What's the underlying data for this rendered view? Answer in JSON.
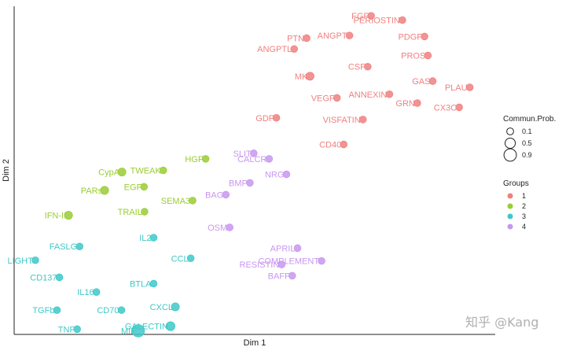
{
  "chart_data": {
    "type": "scatter",
    "xlabel": "Dim 1",
    "ylabel": "Dim 2",
    "xlim": [
      0,
      100
    ],
    "ylim": [
      0,
      100
    ],
    "grid": false,
    "groups": [
      {
        "name": "1",
        "color": "#F08080"
      },
      {
        "name": "2",
        "color": "#9ACD32"
      },
      {
        "name": "3",
        "color": "#40C8C8"
      },
      {
        "name": "4",
        "color": "#C896F0"
      }
    ],
    "size_legend": {
      "title": "Commun.Prob.",
      "values": [
        0.1,
        0.5,
        0.9
      ]
    },
    "group_legend_title": "Groups",
    "points": [
      {
        "label": "FGF",
        "x": 74.2,
        "y": 97.1,
        "group": "1",
        "size": 0.1
      },
      {
        "label": "PERIOSTIN",
        "x": 80.7,
        "y": 95.8,
        "group": "1",
        "size": 0.1
      },
      {
        "label": "PTN",
        "x": 60.8,
        "y": 90.3,
        "group": "1",
        "size": 0.1
      },
      {
        "label": "ANGPT",
        "x": 69.7,
        "y": 91.1,
        "group": "1",
        "size": 0.1
      },
      {
        "label": "PDGF",
        "x": 85.3,
        "y": 90.8,
        "group": "1",
        "size": 0.1
      },
      {
        "label": "ANGPTL",
        "x": 58.2,
        "y": 87.0,
        "group": "1",
        "size": 0.1
      },
      {
        "label": "PROS",
        "x": 86.0,
        "y": 85.0,
        "group": "1",
        "size": 0.1
      },
      {
        "label": "CSF",
        "x": 73.5,
        "y": 81.6,
        "group": "1",
        "size": 0.1
      },
      {
        "label": "MK",
        "x": 61.5,
        "y": 78.7,
        "group": "1",
        "size": 0.2
      },
      {
        "label": "PLAU",
        "x": 94.7,
        "y": 75.3,
        "group": "1",
        "size": 0.1
      },
      {
        "label": "ANNEXIN",
        "x": 78.0,
        "y": 73.2,
        "group": "1",
        "size": 0.1
      },
      {
        "label": "GAS",
        "x": 87.0,
        "y": 77.2,
        "group": "1",
        "size": 0.1
      },
      {
        "label": "VEGF",
        "x": 67.1,
        "y": 72.1,
        "group": "1",
        "size": 0.1
      },
      {
        "label": "CX3C",
        "x": 92.5,
        "y": 69.2,
        "group": "1",
        "size": 0.1
      },
      {
        "label": "GRN",
        "x": 83.8,
        "y": 70.5,
        "group": "1",
        "size": 0.1
      },
      {
        "label": "GDF",
        "x": 54.5,
        "y": 66.0,
        "group": "1",
        "size": 0.1
      },
      {
        "label": "VISFATIN",
        "x": 72.5,
        "y": 65.5,
        "group": "1",
        "size": 0.1
      },
      {
        "label": "CD40",
        "x": 68.5,
        "y": 57.9,
        "group": "1",
        "size": 0.1
      },
      {
        "label": "HGF",
        "x": 39.8,
        "y": 53.5,
        "group": "2",
        "size": 0.1
      },
      {
        "label": "CypA",
        "x": 22.4,
        "y": 49.5,
        "group": "2",
        "size": 0.2
      },
      {
        "label": "TWEAK",
        "x": 31.0,
        "y": 50.0,
        "group": "2",
        "size": 0.1
      },
      {
        "label": "EGF",
        "x": 27.0,
        "y": 45.0,
        "group": "2",
        "size": 0.1
      },
      {
        "label": "PARs",
        "x": 18.8,
        "y": 43.9,
        "group": "2",
        "size": 0.2
      },
      {
        "label": "SEMA3",
        "x": 37.1,
        "y": 40.8,
        "group": "2",
        "size": 0.1
      },
      {
        "label": "IFN-II",
        "x": 11.3,
        "y": 36.3,
        "group": "2",
        "size": 0.2
      },
      {
        "label": "TRAIL",
        "x": 27.1,
        "y": 37.4,
        "group": "2",
        "size": 0.1
      },
      {
        "label": "SLIT",
        "x": 49.8,
        "y": 55.2,
        "group": "4",
        "size": 0.1
      },
      {
        "label": "CALCR",
        "x": 53.0,
        "y": 53.5,
        "group": "4",
        "size": 0.1
      },
      {
        "label": "BMP",
        "x": 49.0,
        "y": 46.2,
        "group": "4",
        "size": 0.1
      },
      {
        "label": "NRG",
        "x": 56.6,
        "y": 48.8,
        "group": "4",
        "size": 0.1
      },
      {
        "label": "BAG",
        "x": 44.0,
        "y": 42.6,
        "group": "4",
        "size": 0.1
      },
      {
        "label": "OSM",
        "x": 44.8,
        "y": 32.6,
        "group": "4",
        "size": 0.1
      },
      {
        "label": "APRIL",
        "x": 58.9,
        "y": 26.3,
        "group": "4",
        "size": 0.1
      },
      {
        "label": "COMPLEMENT",
        "x": 63.9,
        "y": 22.4,
        "group": "4",
        "size": 0.1
      },
      {
        "label": "RESISTIN",
        "x": 55.6,
        "y": 21.3,
        "group": "4",
        "size": 0.1
      },
      {
        "label": "BAFF",
        "x": 57.8,
        "y": 17.9,
        "group": "4",
        "size": 0.1
      },
      {
        "label": "IL2",
        "x": 29.0,
        "y": 29.5,
        "group": "3",
        "size": 0.1
      },
      {
        "label": "FASLG",
        "x": 13.6,
        "y": 26.8,
        "group": "3",
        "size": 0.1
      },
      {
        "label": "LIGHT",
        "x": 4.4,
        "y": 22.6,
        "group": "3",
        "size": 0.1
      },
      {
        "label": "CCL",
        "x": 36.7,
        "y": 23.2,
        "group": "3",
        "size": 0.1
      },
      {
        "label": "CD137",
        "x": 9.4,
        "y": 17.4,
        "group": "3",
        "size": 0.1
      },
      {
        "label": "BTLA",
        "x": 29.0,
        "y": 15.5,
        "group": "3",
        "size": 0.1
      },
      {
        "label": "IL16",
        "x": 17.1,
        "y": 12.9,
        "group": "3",
        "size": 0.1
      },
      {
        "label": "CXCL",
        "x": 33.5,
        "y": 8.4,
        "group": "3",
        "size": 0.2
      },
      {
        "label": "CD70",
        "x": 22.3,
        "y": 7.4,
        "group": "3",
        "size": 0.1
      },
      {
        "label": "TGFb",
        "x": 8.9,
        "y": 7.4,
        "group": "3",
        "size": 0.1
      },
      {
        "label": "GALECTIN",
        "x": 32.5,
        "y": 2.5,
        "group": "3",
        "size": 0.3
      },
      {
        "label": "TNF",
        "x": 13.1,
        "y": 1.6,
        "group": "3",
        "size": 0.1
      },
      {
        "label": "MIF",
        "x": 25.8,
        "y": 1.1,
        "group": "3",
        "size": 0.9
      }
    ]
  },
  "watermark": "知乎 @Kang"
}
